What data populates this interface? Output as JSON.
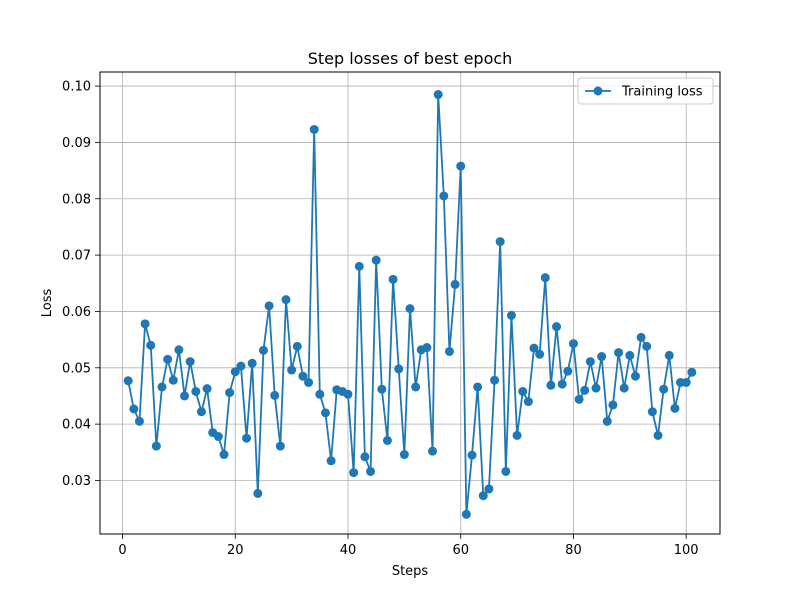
{
  "chart_data": {
    "type": "line",
    "title": "Step losses of best epoch",
    "xlabel": "Steps",
    "ylabel": "Loss",
    "xlim": [
      -4,
      106
    ],
    "ylim": [
      0.0205,
      0.1025
    ],
    "xticks": [
      0,
      20,
      40,
      60,
      80,
      100
    ],
    "yticks": [
      0.03,
      0.04,
      0.05,
      0.06,
      0.07,
      0.08,
      0.09,
      0.1
    ],
    "ytick_labels": [
      "0.03",
      "0.04",
      "0.05",
      "0.06",
      "0.07",
      "0.08",
      "0.09",
      "0.10"
    ],
    "grid": true,
    "legend": {
      "position": "top-right"
    },
    "series": [
      {
        "name": "Training loss",
        "color": "#1f77b4",
        "marker": "circle",
        "x": [
          1,
          2,
          3,
          4,
          5,
          6,
          7,
          8,
          9,
          10,
          11,
          12,
          13,
          14,
          15,
          16,
          17,
          18,
          19,
          20,
          21,
          22,
          23,
          24,
          25,
          26,
          27,
          28,
          29,
          30,
          31,
          32,
          33,
          34,
          35,
          36,
          37,
          38,
          39,
          40,
          41,
          42,
          43,
          44,
          45,
          46,
          47,
          48,
          49,
          50,
          51,
          52,
          53,
          54,
          55,
          56,
          57,
          58,
          59,
          60,
          61,
          62,
          63,
          64,
          65,
          66,
          67,
          68,
          69,
          70,
          71,
          72,
          73,
          74,
          75,
          76,
          77,
          78,
          79,
          80,
          81,
          82,
          83,
          84,
          85,
          86,
          87,
          88,
          89,
          90,
          91,
          92,
          93,
          94,
          95,
          96,
          97,
          98,
          99,
          100,
          101
        ],
        "y": [
          0.0477,
          0.0427,
          0.0405,
          0.0578,
          0.054,
          0.0361,
          0.0466,
          0.0515,
          0.0478,
          0.0532,
          0.045,
          0.0511,
          0.0458,
          0.0422,
          0.0463,
          0.0385,
          0.0378,
          0.0346,
          0.0456,
          0.0493,
          0.0503,
          0.0375,
          0.0508,
          0.0277,
          0.0531,
          0.061,
          0.0451,
          0.0361,
          0.0621,
          0.0496,
          0.0538,
          0.0485,
          0.0474,
          0.0923,
          0.0453,
          0.042,
          0.0335,
          0.0461,
          0.0458,
          0.0453,
          0.0314,
          0.068,
          0.0342,
          0.0316,
          0.0691,
          0.0462,
          0.0371,
          0.0657,
          0.0498,
          0.0346,
          0.0605,
          0.0466,
          0.0532,
          0.0536,
          0.0352,
          0.0985,
          0.0805,
          0.0529,
          0.0648,
          0.0858,
          0.024,
          0.0345,
          0.0466,
          0.0273,
          0.0285,
          0.0478,
          0.0724,
          0.0316,
          0.0593,
          0.038,
          0.0458,
          0.044,
          0.0535,
          0.0524,
          0.066,
          0.0469,
          0.0573,
          0.0471,
          0.0494,
          0.0543,
          0.0444,
          0.046,
          0.0511,
          0.0464,
          0.052,
          0.0405,
          0.0434,
          0.0527,
          0.0464,
          0.0522,
          0.0485,
          0.0554,
          0.0538,
          0.0422,
          0.038,
          0.0462,
          0.0522,
          0.0428,
          0.0474,
          0.0474,
          0.0492
        ]
      }
    ]
  }
}
